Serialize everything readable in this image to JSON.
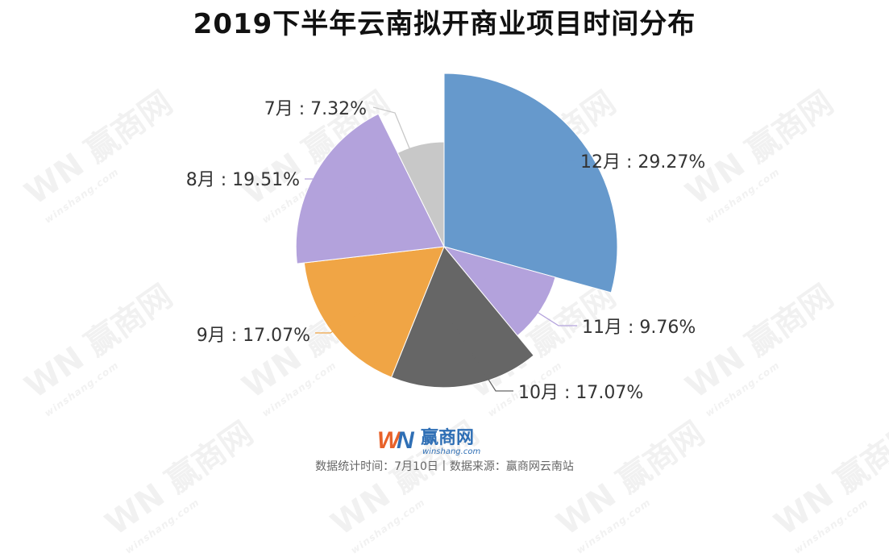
{
  "title": "2019下半年云南拟开商业项目时间分布",
  "footer": "数据统计时间：7月10日丨数据来源：赢商网云南站",
  "brand": {
    "logo_mark": "WN",
    "name": "赢商网",
    "url": "winshang.com"
  },
  "watermark": {
    "text": "赢商网",
    "sub": "winshang.com",
    "mark": "WN"
  },
  "chart_data": {
    "type": "pie",
    "subtype": "rose",
    "title": "2019下半年云南拟开商业项目时间分布",
    "categories": [
      "7月",
      "8月",
      "9月",
      "10月",
      "11月",
      "12月"
    ],
    "values": [
      7.32,
      19.51,
      17.07,
      17.07,
      9.76,
      29.27
    ],
    "labels": [
      "7月 : 7.32%",
      "8月 : 19.51%",
      "9月 : 17.07%",
      "10月 : 17.07%",
      "11月 : 9.76%",
      "12月 : 29.27%"
    ],
    "colors": [
      "#c8c8c8",
      "#b3a2dc",
      "#f0a545",
      "#666666",
      "#b3a2dc",
      "#6699cc"
    ],
    "leader_colors": [
      "#c8c8c8",
      "#b3a2dc",
      "#f0a545",
      "#666666",
      "#b3a2dc",
      "#6699cc"
    ],
    "legend": "none"
  }
}
